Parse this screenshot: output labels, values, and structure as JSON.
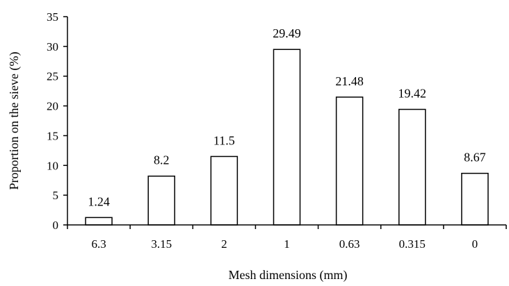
{
  "chart_data": {
    "type": "bar",
    "categories": [
      "6.3",
      "3.15",
      "2",
      "1",
      "0.63",
      "0.315",
      "0"
    ],
    "values": [
      1.24,
      8.2,
      11.5,
      29.49,
      21.48,
      19.42,
      8.67
    ],
    "value_labels": [
      "1.24",
      "8.2",
      "11.5",
      "29.49",
      "21.48",
      "19.42",
      "8.67"
    ],
    "xlabel": "Mesh dimensions (mm)",
    "ylabel": "Proportion on the sieve (%)",
    "ylim": [
      0,
      35
    ],
    "yticks": [
      0,
      5,
      10,
      15,
      20,
      25,
      30,
      35
    ],
    "grid": false,
    "legend": "none",
    "colors": {
      "bar_fill": "#ffffff",
      "bar_stroke": "#000000",
      "axis": "#000000"
    }
  }
}
